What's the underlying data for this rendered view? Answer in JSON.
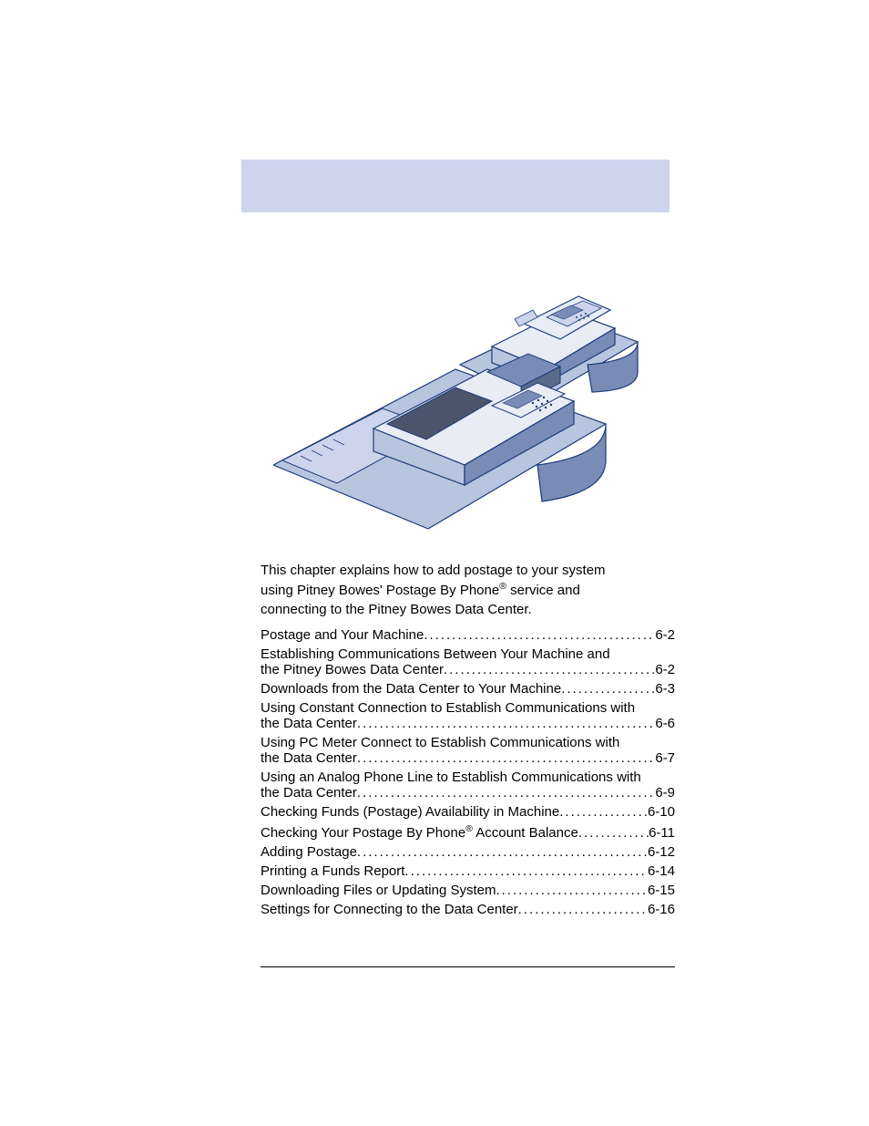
{
  "header_bar_color": "#cdd5ec",
  "illustration": {
    "outline_color": "#1a3a7a",
    "fill_light": "#e8ecf5",
    "fill_mid": "#b8c5de",
    "fill_dark": "#7a8cb5"
  },
  "intro": {
    "line1": "This chapter explains how to add postage to your system",
    "line2a": "using Pitney Bowes' Postage By Phone",
    "line2b": " service and",
    "line3": "connecting to the Pitney Bowes Data Center."
  },
  "toc": [
    {
      "type": "single",
      "label": "Postage and Your Machine",
      "page": "6-2"
    },
    {
      "type": "multi",
      "line1": "Establishing Communications Between Your Machine and",
      "line2": "the Pitney Bowes Data Center ",
      "page": "6-2"
    },
    {
      "type": "single",
      "label": "Downloads from the Data Center to Your Machine",
      "page": "6-3"
    },
    {
      "type": "multi",
      "line1": "Using Constant Connection to Establish Communications with",
      "line2": "the Data Center ",
      "page": "6-6"
    },
    {
      "type": "multi",
      "line1": "Using PC Meter Connect⁠    to Establish Communications with",
      "line2": "the Data Center ",
      "page": "6-7"
    },
    {
      "type": "multi",
      "line1": "Using an Analog Phone Line to Establish Communications with",
      "line2": "the Data Center ",
      "page": "6-9"
    },
    {
      "type": "single",
      "label": "Checking Funds (Postage) Availability in Machine",
      "page": "6-10"
    },
    {
      "type": "single_sup",
      "label_a": "Checking Your Postage By Phone",
      "label_b": " Account Balance ",
      "page": "6-11"
    },
    {
      "type": "single",
      "label": "Adding Postage ",
      "page": "6-12"
    },
    {
      "type": "single",
      "label": "Printing a Funds Report",
      "page": "6-14"
    },
    {
      "type": "single",
      "label": "Downloading Files or Updating System",
      "page": "6-15"
    },
    {
      "type": "single",
      "label": "Settings for Connecting to the Data Center",
      "page": "6-16"
    }
  ]
}
